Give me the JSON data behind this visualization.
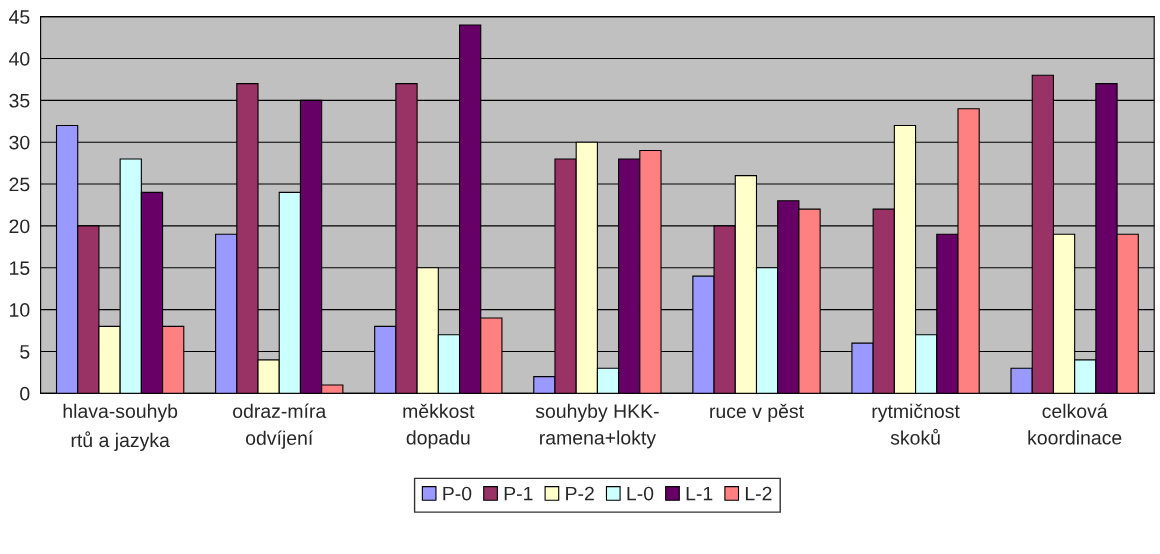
{
  "chart_data": {
    "type": "bar",
    "categories": [
      "hlava-souhyb\nrtů a jazyka",
      "odraz-míra\nodvíjení",
      "měkkost\ndopadu",
      "souhyby HKK-\nramena+lokty",
      "ruce v pěst",
      "rytmičnost\nskoků",
      "celková\nkoordinace"
    ],
    "series": [
      {
        "name": "P-0",
        "color": "#9999ff",
        "values": [
          32,
          19,
          8,
          2,
          14,
          6,
          3
        ]
      },
      {
        "name": "P-1",
        "color": "#993366",
        "values": [
          20,
          37,
          37,
          28,
          20,
          22,
          38
        ]
      },
      {
        "name": "P-2",
        "color": "#ffffcc",
        "values": [
          8,
          4,
          15,
          30,
          26,
          32,
          19
        ]
      },
      {
        "name": "L-0",
        "color": "#ccffff",
        "values": [
          28,
          24,
          7,
          3,
          15,
          7,
          4
        ]
      },
      {
        "name": "L-1",
        "color": "#660066",
        "values": [
          24,
          35,
          44,
          28,
          23,
          19,
          37
        ]
      },
      {
        "name": "L-2",
        "color": "#ff8080",
        "values": [
          8,
          1,
          9,
          29,
          22,
          34,
          19
        ]
      }
    ],
    "ylim": [
      0,
      45
    ],
    "yticks": [
      0,
      5,
      10,
      15,
      20,
      25,
      30,
      35,
      40,
      45
    ],
    "grid": "y",
    "legend": "bottom"
  }
}
